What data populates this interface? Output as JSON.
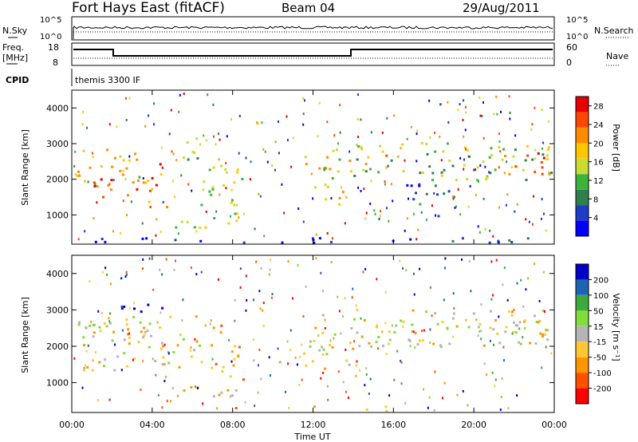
{
  "header": {
    "station": "Fort Hays East (fitACF)",
    "beam": "Beam 04",
    "date": "29/Aug/2011"
  },
  "panels": {
    "nsky_label": "N.Sky",
    "nsky_ticks": [
      "10^5",
      "10^0"
    ],
    "nsearch_label": "N.Search",
    "nsearch_ticks": [
      "10^5",
      "10^0"
    ],
    "freq_label_1": "Freq.",
    "freq_label_2": "[MHz]",
    "freq_ticks": [
      "18",
      "8"
    ],
    "nave_label": "Nave",
    "nave_ticks": [
      "60",
      "0"
    ],
    "cpid_label": "CPID",
    "cpid_value": "themis 3300 IF"
  },
  "colors": {
    "power": [
      "#0000ff",
      "#1e3cc8",
      "#2f7f4f",
      "#3cb43c",
      "#c8dc32",
      "#ffc800",
      "#ff8c00",
      "#ff4600",
      "#e60000"
    ],
    "velocity": [
      "#ff0000",
      "#ff5000",
      "#ff9600",
      "#ffc832",
      "#b4b4b4",
      "#82dc3c",
      "#3caa3c",
      "#1e64b4",
      "#0000c8"
    ]
  },
  "chart_data": [
    {
      "type": "heatmap",
      "name": "power",
      "ylabel": "Slant Range [km]",
      "ylim": [
        180,
        4500
      ],
      "yticks": [
        "1000",
        "2000",
        "3000",
        "4000"
      ],
      "colorbar_label": "Power [dB]",
      "colorbar_ticks": [
        "4",
        "8",
        "12",
        "16",
        "20",
        "24",
        "28"
      ],
      "colorbar_range": [
        0,
        30
      ],
      "echo_bands": [
        {
          "t0": 0.0,
          "t1": 3.5,
          "r0": 1900,
          "r1": 2900,
          "level": 0.55
        },
        {
          "t0": 1.0,
          "t1": 5.0,
          "r0": 1250,
          "r1": 2100,
          "level": 0.8
        },
        {
          "t0": 2.0,
          "t1": 4.5,
          "r0": 2150,
          "r1": 2500,
          "level": 0.75
        },
        {
          "t0": 5.0,
          "t1": 6.5,
          "r0": 2500,
          "r1": 3200,
          "level": 0.45
        },
        {
          "t0": 6.0,
          "t1": 8.5,
          "r0": 1000,
          "r1": 2500,
          "level": 0.5
        },
        {
          "t0": 5.0,
          "t1": 8.5,
          "r0": 650,
          "r1": 950,
          "level": 0.45
        },
        {
          "t0": 10.0,
          "t1": 11.0,
          "r0": 1500,
          "r1": 1650,
          "level": 0.3
        },
        {
          "t0": 11.5,
          "t1": 14.0,
          "r0": 1400,
          "r1": 2900,
          "level": 0.6
        },
        {
          "t0": 12.5,
          "t1": 13.5,
          "r0": 1300,
          "r1": 1600,
          "level": 0.7
        },
        {
          "t0": 14.0,
          "t1": 24.0,
          "r0": 2000,
          "r1": 3050,
          "level": 0.45
        },
        {
          "t0": 14.5,
          "t1": 16.0,
          "r0": 2300,
          "r1": 2900,
          "level": 0.7
        },
        {
          "t0": 21.5,
          "t1": 24.0,
          "r0": 2100,
          "r1": 2900,
          "level": 0.75
        },
        {
          "t0": 16.0,
          "t1": 19.0,
          "r0": 1000,
          "r1": 1900,
          "level": 0.2
        },
        {
          "t0": 0.0,
          "t1": 24.0,
          "r0": 180,
          "r1": 380,
          "level": 0.1
        }
      ]
    },
    {
      "type": "heatmap",
      "name": "velocity",
      "xlabel": "Time UT",
      "ylabel": "Slant Range [km]",
      "xlim": [
        0,
        24
      ],
      "ylim": [
        180,
        4500
      ],
      "xticks": [
        "00:00",
        "04:00",
        "08:00",
        "12:00",
        "16:00",
        "20:00",
        "00:00"
      ],
      "yticks": [
        "1000",
        "2000",
        "3000",
        "4000"
      ],
      "colorbar_label": "Velocity [m s⁻¹]",
      "colorbar_ticks": [
        "-200",
        "-100",
        "-50",
        "-15",
        "15",
        "50",
        "100",
        "200"
      ],
      "colorbar_range": [
        -250,
        250
      ],
      "echo_bands": [
        {
          "t0": 0.0,
          "t1": 6.5,
          "r0": 1300,
          "r1": 2900,
          "level": 0.45
        },
        {
          "t0": 2.0,
          "t1": 4.5,
          "r0": 2150,
          "r1": 2500,
          "level": 0.4
        },
        {
          "t0": 2.0,
          "t1": 4.5,
          "r0": 2800,
          "r1": 3200,
          "level": 0.95
        },
        {
          "t0": 6.0,
          "t1": 7.5,
          "r0": 2100,
          "r1": 2600,
          "level": 0.15
        },
        {
          "t0": 6.5,
          "t1": 8.5,
          "r0": 1000,
          "r1": 2100,
          "level": 0.3
        },
        {
          "t0": 5.0,
          "t1": 8.5,
          "r0": 650,
          "r1": 950,
          "level": 0.35
        },
        {
          "t0": 10.0,
          "t1": 11.0,
          "r0": 1500,
          "r1": 1650,
          "level": 0.45
        },
        {
          "t0": 11.5,
          "t1": 14.0,
          "r0": 1400,
          "r1": 2900,
          "level": 0.45
        },
        {
          "t0": 14.0,
          "t1": 24.0,
          "r0": 2000,
          "r1": 3050,
          "level": 0.45
        },
        {
          "t0": 21.5,
          "t1": 24.0,
          "r0": 2100,
          "r1": 2900,
          "level": 0.45
        },
        {
          "t0": 8.0,
          "t1": 16.0,
          "r0": 180,
          "r1": 380,
          "level": 0.3
        }
      ]
    }
  ]
}
